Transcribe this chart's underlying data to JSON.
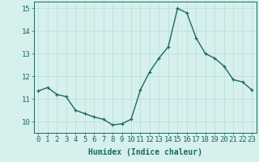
{
  "x": [
    0,
    1,
    2,
    3,
    4,
    5,
    6,
    7,
    8,
    9,
    10,
    11,
    12,
    13,
    14,
    15,
    16,
    17,
    18,
    19,
    20,
    21,
    22,
    23
  ],
  "y": [
    11.35,
    11.5,
    11.2,
    11.1,
    10.5,
    10.35,
    10.2,
    10.1,
    9.85,
    9.9,
    10.1,
    11.4,
    12.2,
    12.8,
    13.3,
    15.0,
    14.8,
    13.7,
    13.0,
    12.8,
    12.45,
    11.85,
    11.75,
    11.4
  ],
  "line_color": "#1a6b5a",
  "marker": "+",
  "marker_size": 3.5,
  "background_color": "#d6f0ee",
  "grid_color": "#b8dcd8",
  "xlabel": "Humidex (Indice chaleur)",
  "xlabel_fontsize": 7,
  "tick_fontsize": 6.5,
  "ylim": [
    9.5,
    15.3
  ],
  "xlim": [
    -0.5,
    23.5
  ],
  "yticks": [
    10,
    11,
    12,
    13,
    14,
    15
  ],
  "xticks": [
    0,
    1,
    2,
    3,
    4,
    5,
    6,
    7,
    8,
    9,
    10,
    11,
    12,
    13,
    14,
    15,
    16,
    17,
    18,
    19,
    20,
    21,
    22,
    23
  ],
  "line_width": 1.0,
  "marker_color": "#1a6b5a",
  "marker_edge_width": 0.9
}
